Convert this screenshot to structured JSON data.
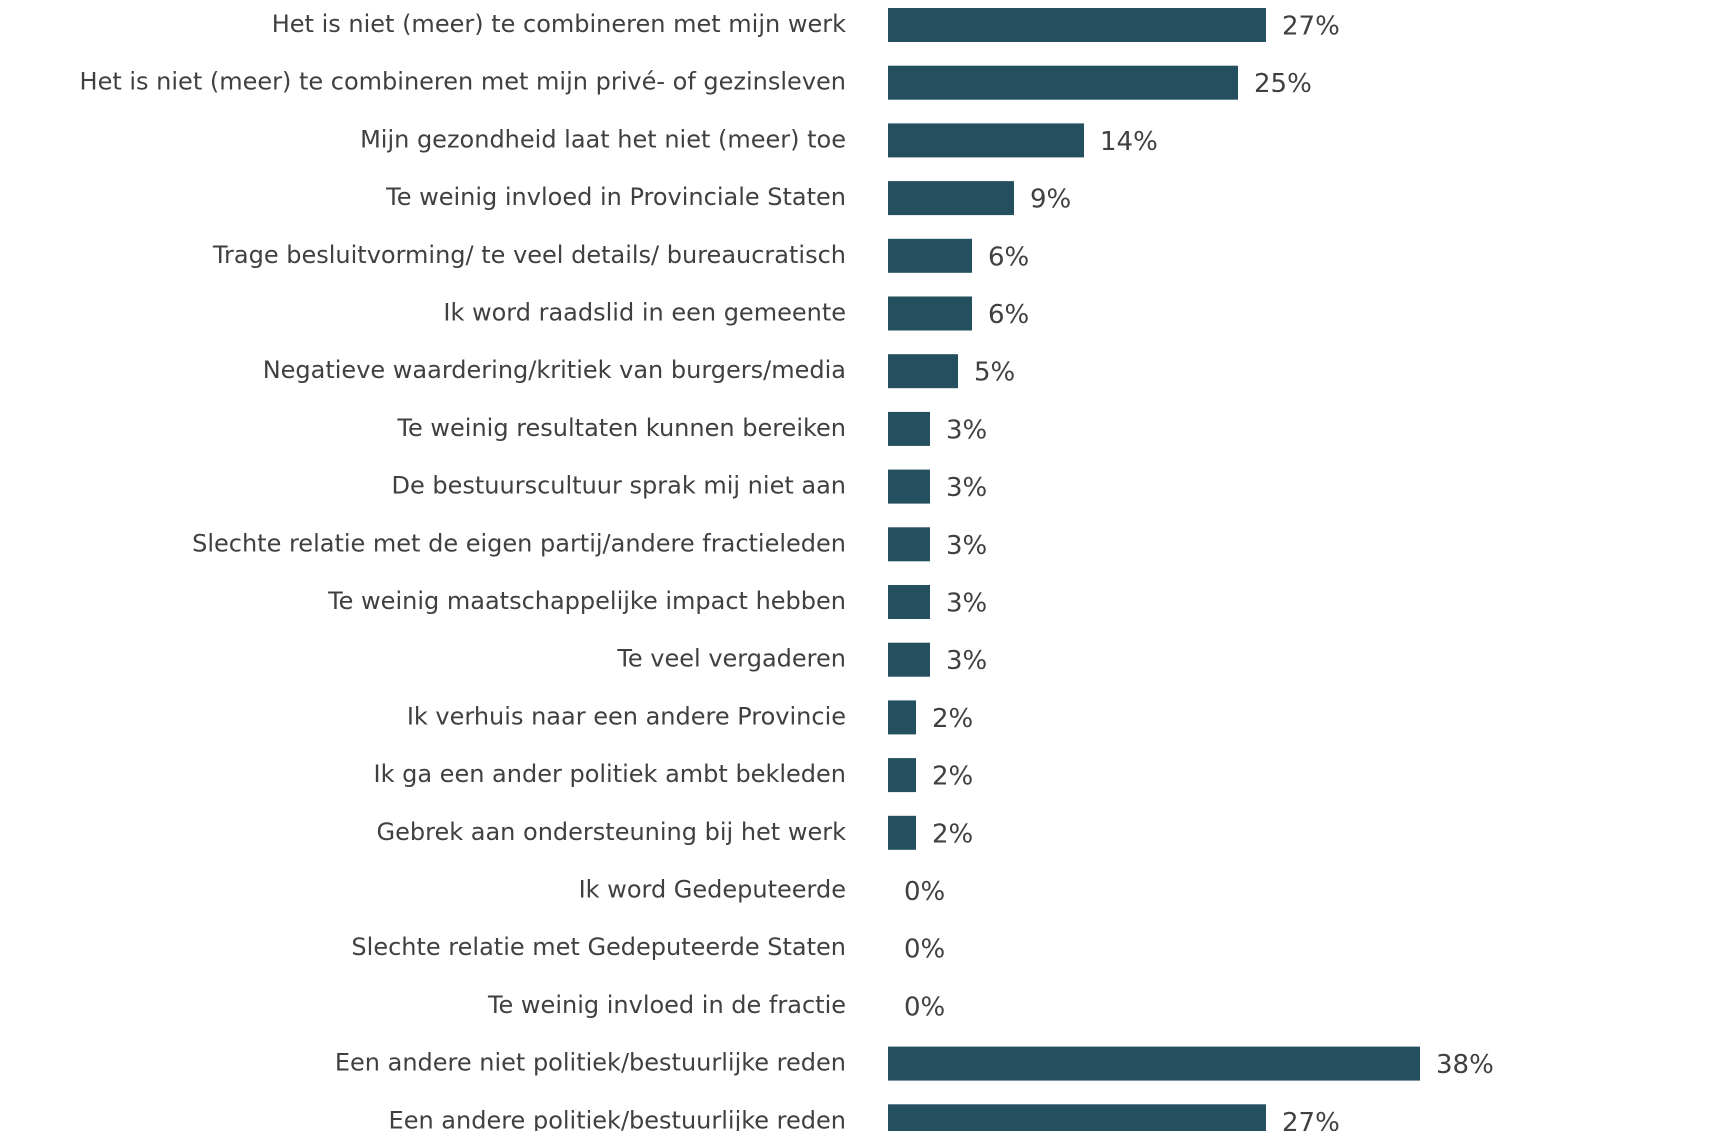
{
  "chart_data": {
    "type": "bar",
    "orientation": "horizontal",
    "categories": [
      "Het is niet (meer) te combineren met mijn werk",
      "Het is niet (meer) te combineren met mijn privé- of gezinsleven",
      "Mijn gezondheid laat het niet (meer) toe",
      "Te weinig invloed in Provinciale Staten",
      "Trage besluitvorming/ te veel details/ bureaucratisch",
      "Ik word raadslid in een gemeente",
      "Negatieve waardering/kritiek van burgers/media",
      "Te weinig resultaten kunnen bereiken",
      "De bestuurscultuur sprak mij niet aan",
      "Slechte relatie met de eigen partij/andere fractieleden",
      "Te weinig maatschappelijke impact hebben",
      "Te veel vergaderen",
      "Ik verhuis naar een andere Provincie",
      "Ik ga een ander politiek ambt bekleden",
      "Gebrek aan ondersteuning bij het werk",
      "Ik word Gedeputeerde",
      "Slechte relatie met Gedeputeerde Staten",
      "Te weinig invloed in de fractie",
      "Een andere niet politiek/bestuurlijke reden",
      "Een andere politiek/bestuurlijke reden"
    ],
    "values": [
      27,
      25,
      14,
      9,
      6,
      6,
      5,
      3,
      3,
      3,
      3,
      3,
      2,
      2,
      2,
      0,
      0,
      0,
      38,
      27
    ],
    "value_labels": [
      "27%",
      "25%",
      "14%",
      "9%",
      "6%",
      "6%",
      "5%",
      "3%",
      "3%",
      "3%",
      "3%",
      "3%",
      "2%",
      "2%",
      "2%",
      "0%",
      "0%",
      "0%",
      "38%",
      "27%"
    ],
    "unit": "%",
    "xlim": [
      0,
      40
    ],
    "grid": false,
    "legend": "none",
    "bar_color": "#234f5e"
  }
}
